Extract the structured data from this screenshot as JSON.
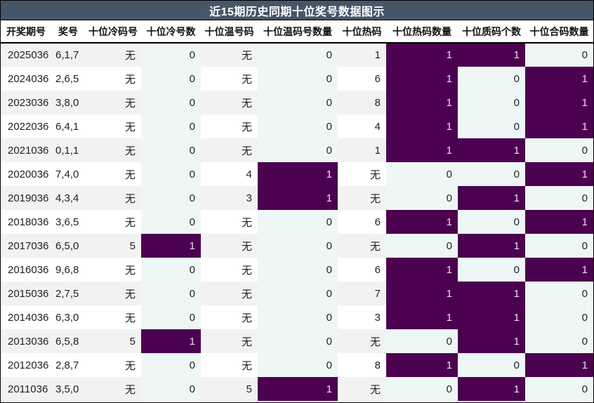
{
  "title": "近15期历史同期十位奖号数据图示",
  "colors": {
    "title_bar_bg": "#465669",
    "title_text": "#ffffff",
    "outer_border": "#000000",
    "header_text": "#111111",
    "header_rule": "#000000",
    "row_stripe": "#f2f2f2",
    "row_plain": "#ffffff",
    "count_col_bg": "#eff7f6",
    "highlight_bg": "#4c0150",
    "highlight_text": "#e8dfe8",
    "body_text": "#222222"
  },
  "chart_data": {
    "type": "table",
    "title": "近15期历史同期十位奖号数据图示",
    "legend": "count columns show 1 on dark purple highlight, 0 on light background",
    "columns": [
      {
        "key": "period",
        "label": "开奖期号",
        "type": "plain",
        "align": "left"
      },
      {
        "key": "numbers",
        "label": "奖号",
        "type": "plain",
        "align": "left"
      },
      {
        "key": "cold_number",
        "label": "十位冷码号",
        "type": "plain",
        "align": "right"
      },
      {
        "key": "cold_count",
        "label": "十位冷号数",
        "type": "count",
        "align": "right"
      },
      {
        "key": "warm_number",
        "label": "十位温号码",
        "type": "plain",
        "align": "right"
      },
      {
        "key": "warm_count",
        "label": "十位温码号数量",
        "type": "count",
        "align": "right"
      },
      {
        "key": "hot_number",
        "label": "十位热码",
        "type": "plain",
        "align": "right"
      },
      {
        "key": "hot_count",
        "label": "十位热码数量",
        "type": "count",
        "align": "right"
      },
      {
        "key": "prime_count",
        "label": "十位质码个数",
        "type": "count",
        "align": "right"
      },
      {
        "key": "composite_count",
        "label": "十位合码数量",
        "type": "count",
        "align": "right"
      }
    ],
    "highlight_value": "1",
    "rows": [
      [
        "2025036",
        "6,1,7",
        "无",
        "0",
        "无",
        "0",
        "1",
        "1",
        "1",
        "0"
      ],
      [
        "2024036",
        "2,6,5",
        "无",
        "0",
        "无",
        "0",
        "6",
        "1",
        "0",
        "1"
      ],
      [
        "2023036",
        "3,8,0",
        "无",
        "0",
        "无",
        "0",
        "8",
        "1",
        "0",
        "1"
      ],
      [
        "2022036",
        "6,4,1",
        "无",
        "0",
        "无",
        "0",
        "4",
        "1",
        "0",
        "1"
      ],
      [
        "2021036",
        "0,1,1",
        "无",
        "0",
        "无",
        "0",
        "1",
        "1",
        "1",
        "0"
      ],
      [
        "2020036",
        "7,4,0",
        "无",
        "0",
        "4",
        "1",
        "无",
        "0",
        "0",
        "1"
      ],
      [
        "2019036",
        "4,3,4",
        "无",
        "0",
        "3",
        "1",
        "无",
        "0",
        "1",
        "0"
      ],
      [
        "2018036",
        "3,6,5",
        "无",
        "0",
        "无",
        "0",
        "6",
        "1",
        "0",
        "1"
      ],
      [
        "2017036",
        "6,5,0",
        "5",
        "1",
        "无",
        "0",
        "无",
        "0",
        "1",
        "0"
      ],
      [
        "2016036",
        "9,6,8",
        "无",
        "0",
        "无",
        "0",
        "6",
        "1",
        "0",
        "1"
      ],
      [
        "2015036",
        "2,7,5",
        "无",
        "0",
        "无",
        "0",
        "7",
        "1",
        "1",
        "0"
      ],
      [
        "2014036",
        "6,3,0",
        "无",
        "0",
        "无",
        "0",
        "3",
        "1",
        "1",
        "0"
      ],
      [
        "2013036",
        "6,5,8",
        "5",
        "1",
        "无",
        "0",
        "无",
        "0",
        "1",
        "0"
      ],
      [
        "2012036",
        "2,8,7",
        "无",
        "0",
        "无",
        "0",
        "8",
        "1",
        "0",
        "1"
      ],
      [
        "2011036",
        "3,5,0",
        "无",
        "0",
        "5",
        "1",
        "无",
        "0",
        "1",
        "0"
      ]
    ]
  }
}
